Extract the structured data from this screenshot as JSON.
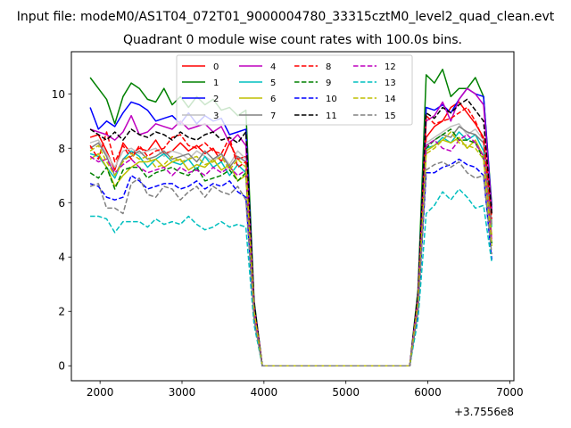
{
  "figure": {
    "suptitle": "Input file: modeM0/AS1T04_072T01_9000004780_33315cztM0_level2_quad_clean.evt",
    "title": "Quadrant 0 module wise count rates with 100.0s bins."
  },
  "chart_data": {
    "type": "line",
    "title": "Quadrant 0 module wise count rates with 100.0s bins.",
    "xlabel": "",
    "ylabel": "",
    "x_offset_label": "+3.7556e8",
    "xlim": [
      1650,
      7050
    ],
    "ylim": [
      -0.55,
      11.55
    ],
    "x_ticks": [
      2000,
      3000,
      4000,
      5000,
      6000,
      7000
    ],
    "y_ticks": [
      0,
      2,
      4,
      6,
      8,
      10
    ],
    "grid": false,
    "legend_placement": "top-center",
    "legend_columns": 4,
    "x": [
      1880,
      1980,
      2080,
      2180,
      2280,
      2380,
      2480,
      2580,
      2680,
      2780,
      2880,
      2980,
      3080,
      3180,
      3280,
      3380,
      3480,
      3580,
      3680,
      3780,
      3880,
      3980,
      4080,
      4180,
      4280,
      4380,
      4480,
      4580,
      4680,
      4780,
      4880,
      4980,
      5080,
      5180,
      5280,
      5380,
      5480,
      5580,
      5680,
      5780,
      5880,
      5980,
      6080,
      6180,
      6280,
      6380,
      6480,
      6580,
      6680,
      6780
    ],
    "series": [
      {
        "name": "0",
        "color": "#ff0000",
        "dash": "solid",
        "values": [
          8.4,
          8.5,
          7.9,
          7.2,
          8.2,
          7.8,
          8.0,
          7.9,
          8.3,
          7.8,
          7.9,
          8.2,
          7.9,
          8.1,
          7.8,
          8.0,
          7.5,
          8.2,
          7.6,
          7.7,
          2.2,
          0,
          0,
          0,
          0,
          0,
          0,
          0,
          0,
          0,
          0,
          0,
          0,
          0,
          0,
          0,
          0,
          0,
          0,
          0,
          2.5,
          8.4,
          8.8,
          9.0,
          9.5,
          9.7,
          9.3,
          8.9,
          8.4,
          5.6
        ]
      },
      {
        "name": "1",
        "color": "#008000",
        "dash": "solid",
        "values": [
          10.6,
          10.2,
          9.8,
          8.9,
          9.9,
          10.4,
          10.2,
          9.8,
          9.7,
          10.2,
          9.6,
          9.9,
          9.5,
          9.9,
          9.6,
          9.8,
          9.4,
          9.5,
          9.2,
          9.4,
          2.4,
          0,
          0,
          0,
          0,
          0,
          0,
          0,
          0,
          0,
          0,
          0,
          0,
          0,
          0,
          0,
          0,
          0,
          0,
          0,
          2.8,
          10.7,
          10.4,
          10.9,
          9.9,
          10.2,
          10.2,
          10.6,
          9.9,
          5.9
        ]
      },
      {
        "name": "2",
        "color": "#0000ff",
        "dash": "solid",
        "values": [
          9.5,
          8.7,
          9.0,
          8.8,
          9.3,
          9.7,
          9.6,
          9.4,
          9.0,
          9.1,
          9.2,
          8.9,
          9.3,
          8.9,
          9.2,
          9.0,
          9.1,
          8.5,
          8.6,
          8.7,
          2.3,
          0,
          0,
          0,
          0,
          0,
          0,
          0,
          0,
          0,
          0,
          0,
          0,
          0,
          0,
          0,
          0,
          0,
          0,
          0,
          2.6,
          9.5,
          9.4,
          9.6,
          9.3,
          9.8,
          10.2,
          10.0,
          9.9,
          5.8
        ]
      },
      {
        "name": "3",
        "color": "#c0c0c0",
        "dash": "solid",
        "values": [
          8.2,
          8.3,
          7.8,
          7.3,
          7.9,
          8.0,
          7.8,
          7.9,
          8.0,
          7.7,
          7.9,
          7.8,
          7.6,
          7.9,
          7.7,
          7.5,
          7.8,
          7.4,
          7.9,
          7.6,
          2.1,
          0,
          0,
          0,
          0,
          0,
          0,
          0,
          0,
          0,
          0,
          0,
          0,
          0,
          0,
          0,
          0,
          0,
          0,
          0,
          2.4,
          8.2,
          8.4,
          8.6,
          8.8,
          8.9,
          8.5,
          8.7,
          8.3,
          5.3
        ]
      },
      {
        "name": "4",
        "color": "#bf00bf",
        "dash": "solid",
        "values": [
          8.7,
          8.6,
          8.5,
          8.3,
          8.6,
          9.2,
          8.5,
          8.6,
          8.9,
          8.8,
          8.7,
          9.0,
          8.7,
          8.8,
          8.9,
          8.6,
          8.8,
          8.2,
          8.5,
          8.1,
          2.2,
          0,
          0,
          0,
          0,
          0,
          0,
          0,
          0,
          0,
          0,
          0,
          0,
          0,
          0,
          0,
          0,
          0,
          0,
          0,
          2.6,
          9.0,
          9.2,
          9.7,
          9.0,
          9.8,
          10.2,
          10.0,
          9.6,
          5.7
        ]
      },
      {
        "name": "5",
        "color": "#00bfbf",
        "dash": "solid",
        "values": [
          7.8,
          7.7,
          7.3,
          6.9,
          7.6,
          7.9,
          7.7,
          7.3,
          7.6,
          7.8,
          7.5,
          7.4,
          7.6,
          7.2,
          7.7,
          7.3,
          7.5,
          7.0,
          7.4,
          7.1,
          2.0,
          0,
          0,
          0,
          0,
          0,
          0,
          0,
          0,
          0,
          0,
          0,
          0,
          0,
          0,
          0,
          0,
          0,
          0,
          0,
          2.3,
          8.0,
          8.1,
          8.4,
          8.2,
          8.6,
          8.3,
          8.5,
          7.9,
          5.1
        ]
      },
      {
        "name": "6",
        "color": "#bfbf00",
        "dash": "solid",
        "values": [
          7.6,
          7.8,
          7.3,
          6.6,
          7.0,
          7.3,
          7.5,
          7.5,
          7.6,
          7.3,
          7.5,
          7.6,
          7.2,
          7.4,
          7.3,
          7.6,
          7.2,
          7.4,
          6.8,
          7.0,
          1.9,
          0,
          0,
          0,
          0,
          0,
          0,
          0,
          0,
          0,
          0,
          0,
          0,
          0,
          0,
          0,
          0,
          0,
          0,
          0,
          2.2,
          7.9,
          8.1,
          8.3,
          8.2,
          8.4,
          8.0,
          8.3,
          7.7,
          4.8
        ]
      },
      {
        "name": "7",
        "color": "#808080",
        "dash": "solid",
        "values": [
          8.0,
          8.2,
          7.7,
          7.0,
          7.6,
          7.7,
          7.9,
          7.6,
          7.7,
          7.9,
          7.6,
          7.7,
          7.8,
          7.5,
          7.9,
          7.6,
          7.8,
          7.3,
          7.7,
          7.5,
          2.0,
          0,
          0,
          0,
          0,
          0,
          0,
          0,
          0,
          0,
          0,
          0,
          0,
          0,
          0,
          0,
          0,
          0,
          0,
          0,
          2.3,
          8.1,
          8.3,
          8.5,
          8.4,
          8.8,
          8.6,
          8.5,
          8.2,
          5.2
        ]
      },
      {
        "name": "8",
        "color": "#ff0000",
        "dash": "dashed",
        "values": [
          8.1,
          7.6,
          8.6,
          7.5,
          8.1,
          7.6,
          8.1,
          7.7,
          7.9,
          8.0,
          8.4,
          8.5,
          8.1,
          8.0,
          8.2,
          7.9,
          7.8,
          8.4,
          7.3,
          7.5,
          2.2,
          0,
          0,
          0,
          0,
          0,
          0,
          0,
          0,
          0,
          0,
          0,
          0,
          0,
          0,
          0,
          0,
          0,
          0,
          0,
          2.4,
          9.2,
          8.9,
          9.0,
          9.1,
          9.3,
          9.5,
          9.0,
          8.3,
          5.4
        ]
      },
      {
        "name": "9",
        "color": "#008000",
        "dash": "dashed",
        "values": [
          7.1,
          6.9,
          7.3,
          6.5,
          7.2,
          7.3,
          7.3,
          6.9,
          7.1,
          7.2,
          7.3,
          7.1,
          7.0,
          7.3,
          6.8,
          6.9,
          7.0,
          7.2,
          6.8,
          7.1,
          1.9,
          0,
          0,
          0,
          0,
          0,
          0,
          0,
          0,
          0,
          0,
          0,
          0,
          0,
          0,
          0,
          0,
          0,
          0,
          0,
          2.2,
          8.0,
          8.3,
          8.5,
          8.7,
          8.3,
          8.3,
          8.2,
          7.6,
          4.5
        ]
      },
      {
        "name": "10",
        "color": "#0000ff",
        "dash": "dashed",
        "values": [
          6.7,
          6.6,
          6.2,
          6.1,
          6.2,
          7.0,
          6.8,
          6.5,
          6.6,
          6.7,
          6.7,
          6.5,
          6.6,
          6.8,
          6.5,
          6.7,
          6.6,
          6.8,
          6.4,
          6.2,
          1.8,
          0,
          0,
          0,
          0,
          0,
          0,
          0,
          0,
          0,
          0,
          0,
          0,
          0,
          0,
          0,
          0,
          0,
          0,
          0,
          2.0,
          7.1,
          7.1,
          7.3,
          7.4,
          7.6,
          7.4,
          7.3,
          7.0,
          3.9
        ]
      },
      {
        "name": "11",
        "color": "#000000",
        "dash": "dashed",
        "values": [
          8.7,
          8.5,
          8.3,
          8.6,
          8.3,
          8.7,
          8.5,
          8.4,
          8.6,
          8.5,
          8.3,
          8.6,
          8.4,
          8.3,
          8.5,
          8.6,
          8.3,
          8.4,
          8.2,
          8.6,
          2.3,
          0,
          0,
          0,
          0,
          0,
          0,
          0,
          0,
          0,
          0,
          0,
          0,
          0,
          0,
          0,
          0,
          0,
          0,
          0,
          2.6,
          9.3,
          9.1,
          9.5,
          9.3,
          9.6,
          9.8,
          9.4,
          9.0,
          5.6
        ]
      },
      {
        "name": "12",
        "color": "#bf00bf",
        "dash": "dashed",
        "values": [
          7.7,
          7.5,
          7.6,
          7.1,
          7.4,
          7.6,
          7.3,
          7.1,
          7.2,
          7.3,
          7.0,
          7.3,
          7.1,
          7.2,
          7.0,
          7.3,
          7.1,
          7.3,
          7.0,
          7.2,
          2.0,
          0,
          0,
          0,
          0,
          0,
          0,
          0,
          0,
          0,
          0,
          0,
          0,
          0,
          0,
          0,
          0,
          0,
          0,
          0,
          2.3,
          8.1,
          8.3,
          8.0,
          7.9,
          8.3,
          8.5,
          8.2,
          7.7,
          4.6
        ]
      },
      {
        "name": "13",
        "color": "#00bfbf",
        "dash": "dashed",
        "values": [
          5.5,
          5.5,
          5.4,
          4.9,
          5.3,
          5.3,
          5.3,
          5.1,
          5.4,
          5.2,
          5.3,
          5.2,
          5.5,
          5.2,
          5.0,
          5.1,
          5.3,
          5.1,
          5.2,
          5.1,
          1.5,
          0,
          0,
          0,
          0,
          0,
          0,
          0,
          0,
          0,
          0,
          0,
          0,
          0,
          0,
          0,
          0,
          0,
          0,
          0,
          1.7,
          5.6,
          5.9,
          6.4,
          6.1,
          6.5,
          6.2,
          5.8,
          5.9,
          3.8
        ]
      },
      {
        "name": "14",
        "color": "#bfbf00",
        "dash": "dashed",
        "values": [
          7.9,
          8.1,
          7.5,
          7.0,
          7.5,
          7.8,
          7.6,
          7.7,
          7.3,
          7.4,
          7.7,
          7.5,
          7.6,
          7.7,
          7.4,
          7.5,
          7.7,
          7.2,
          7.6,
          7.3,
          2.0,
          0,
          0,
          0,
          0,
          0,
          0,
          0,
          0,
          0,
          0,
          0,
          0,
          0,
          0,
          0,
          0,
          0,
          0,
          0,
          2.3,
          7.8,
          8.0,
          8.3,
          8.6,
          8.2,
          8.1,
          8.0,
          7.6,
          4.4
        ]
      },
      {
        "name": "15",
        "color": "#808080",
        "dash": "dashed",
        "values": [
          6.6,
          6.7,
          5.8,
          5.8,
          5.6,
          6.7,
          6.9,
          6.3,
          6.2,
          6.6,
          6.5,
          6.1,
          6.4,
          6.6,
          6.2,
          6.6,
          6.4,
          6.3,
          6.6,
          6.1,
          1.7,
          0,
          0,
          0,
          0,
          0,
          0,
          0,
          0,
          0,
          0,
          0,
          0,
          0,
          0,
          0,
          0,
          0,
          0,
          0,
          2.0,
          7.2,
          7.4,
          7.5,
          7.3,
          7.5,
          7.1,
          6.9,
          7.0,
          4.1
        ]
      }
    ]
  }
}
